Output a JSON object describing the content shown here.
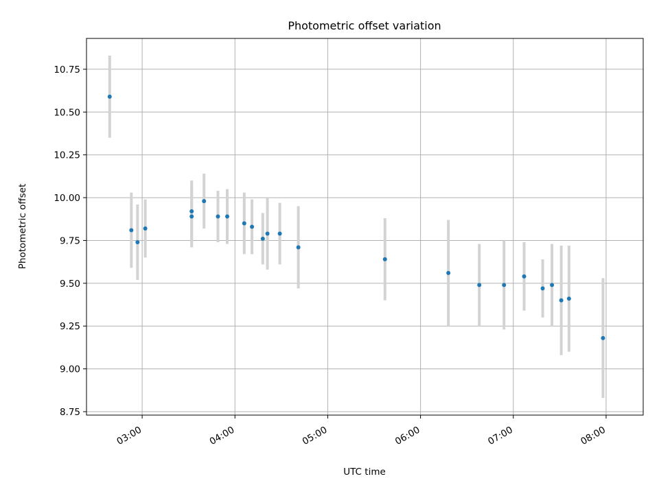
{
  "chart_data": {
    "type": "scatter",
    "title": "Photometric offset variation",
    "xlabel": "UTC time",
    "ylabel": "Photometric offset",
    "grid": true,
    "xlim": [
      "02:24",
      "08:24"
    ],
    "ylim": [
      8.73,
      10.93
    ],
    "x_ticks": [
      "03:00",
      "04:00",
      "05:00",
      "06:00",
      "07:00",
      "08:00"
    ],
    "y_ticks": [
      "8.75",
      "9.00",
      "9.25",
      "9.50",
      "9.75",
      "10.00",
      "10.25",
      "10.50",
      "10.75"
    ],
    "marker_color": "#1f77b4",
    "errorbar_color": "#d3d3d3",
    "points": [
      {
        "x": "02:39",
        "y": 10.59,
        "err": 0.24
      },
      {
        "x": "02:53",
        "y": 9.81,
        "err": 0.22
      },
      {
        "x": "02:57",
        "y": 9.74,
        "err": 0.22
      },
      {
        "x": "03:02",
        "y": 9.82,
        "err": 0.17
      },
      {
        "x": "03:32",
        "y": 9.92,
        "err": 0.18
      },
      {
        "x": "03:32",
        "y": 9.89,
        "err": 0.18
      },
      {
        "x": "03:40",
        "y": 9.98,
        "err": 0.16
      },
      {
        "x": "03:49",
        "y": 9.89,
        "err": 0.15
      },
      {
        "x": "03:55",
        "y": 9.89,
        "err": 0.16
      },
      {
        "x": "04:06",
        "y": 9.85,
        "err": 0.18
      },
      {
        "x": "04:11",
        "y": 9.83,
        "err": 0.16
      },
      {
        "x": "04:18",
        "y": 9.76,
        "err": 0.15
      },
      {
        "x": "04:21",
        "y": 9.79,
        "err": 0.21
      },
      {
        "x": "04:29",
        "y": 9.79,
        "err": 0.18
      },
      {
        "x": "04:41",
        "y": 9.71,
        "err": 0.24
      },
      {
        "x": "05:37",
        "y": 9.64,
        "err": 0.24
      },
      {
        "x": "06:18",
        "y": 9.56,
        "err": 0.31
      },
      {
        "x": "06:38",
        "y": 9.49,
        "err": 0.24
      },
      {
        "x": "06:54",
        "y": 9.49,
        "err": 0.26
      },
      {
        "x": "07:07",
        "y": 9.54,
        "err": 0.2
      },
      {
        "x": "07:19",
        "y": 9.47,
        "err": 0.17
      },
      {
        "x": "07:25",
        "y": 9.49,
        "err": 0.24
      },
      {
        "x": "07:31",
        "y": 9.4,
        "err": 0.32
      },
      {
        "x": "07:36",
        "y": 9.41,
        "err": 0.31
      },
      {
        "x": "07:58",
        "y": 9.18,
        "err": 0.35
      }
    ]
  }
}
